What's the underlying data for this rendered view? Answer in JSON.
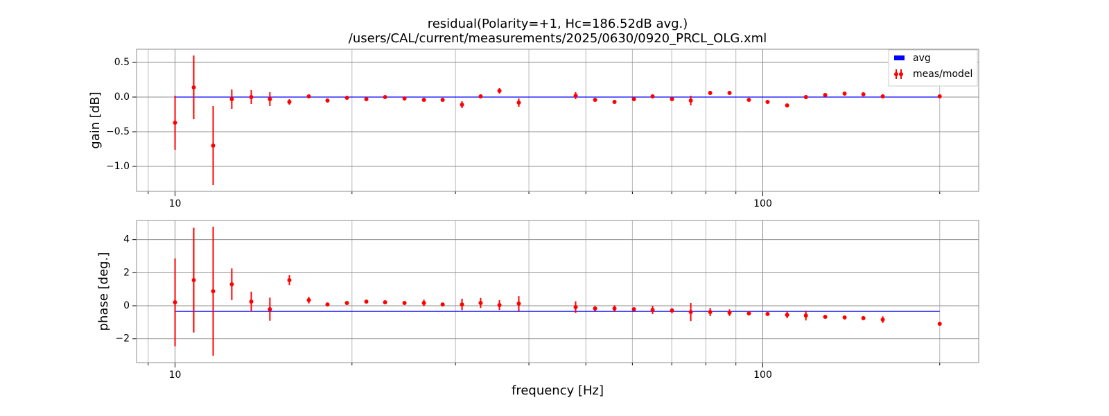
{
  "chart_data": [
    {
      "type": "errorbar",
      "title": "residual(Polarity=+1,  Hc=186.52dB avg.)",
      "subtitle": "/users/CAL/current/measurements/2025/0630/0920_PRCL_OLG.xml",
      "ylabel": "gain [dB]",
      "xscale": "log",
      "grid": true,
      "legend": "upper right",
      "xlim": [
        8.6,
        233
      ],
      "ylim": [
        -1.36,
        0.69
      ],
      "xticks": [
        10,
        100
      ],
      "xminor": [
        9,
        20,
        30,
        40,
        50,
        60,
        70,
        80,
        90,
        200
      ],
      "yticks": [
        {
          "value": 0.5,
          "label": "0.5"
        },
        {
          "value": 0,
          "label": "0.0"
        },
        {
          "value": -0.5,
          "label": "−0.5"
        },
        {
          "value": -1,
          "label": "−1.0"
        }
      ],
      "x": [
        10,
        10.76,
        11.61,
        12.49,
        13.48,
        14.5,
        15.65,
        16.89,
        18.17,
        19.61,
        21.16,
        22.77,
        24.57,
        26.51,
        28.53,
        30.78,
        33.11,
        35.64,
        38.45,
        48.04,
        51.84,
        55.94,
        60.36,
        64.94,
        70.07,
        75.42,
        81.38,
        87.79,
        94.71,
        101.9,
        110,
        118.4,
        127.7,
        137.8,
        148.3,
        160,
        200
      ],
      "series": [
        {
          "name": "avg",
          "style": "line",
          "color": "#0000ff",
          "x": [
            10,
            200
          ],
          "values": [
            0,
            0
          ]
        },
        {
          "name": "meas/model",
          "style": "errorbar",
          "color": "#ff0000",
          "values": [
            -0.37,
            0.14,
            -0.7,
            -0.03,
            0,
            -0.03,
            -0.07,
            0.01,
            -0.05,
            -0.01,
            -0.03,
            0,
            -0.02,
            -0.04,
            -0.04,
            -0.11,
            0.01,
            0.09,
            -0.08,
            0.02,
            -0.04,
            -0.07,
            -0.03,
            0.01,
            -0.03,
            -0.05,
            0.06,
            0.06,
            -0.04,
            -0.07,
            -0.12,
            0,
            0.03,
            0.05,
            0.04,
            0.01,
            0.01
          ],
          "errors": [
            0.39,
            0.46,
            0.57,
            0.14,
            0.1,
            0.1,
            0.04,
            0.02,
            0.01,
            0.01,
            0.01,
            0.01,
            0.01,
            0.02,
            0.01,
            0.05,
            0.03,
            0.04,
            0.06,
            0.05,
            0.02,
            0.02,
            0.02,
            0.03,
            0.02,
            0.07,
            0.03,
            0.02,
            0.02,
            0.01,
            0.02,
            0.03,
            0.01,
            0.01,
            0.01,
            0.03,
            0.01
          ]
        }
      ]
    },
    {
      "type": "errorbar",
      "ylabel": "phase [deg.]",
      "xlabel": "frequency [Hz]",
      "xscale": "log",
      "grid": true,
      "xlim": [
        8.6,
        233
      ],
      "ylim": [
        -3.44,
        5.16
      ],
      "xticks": [
        10,
        100
      ],
      "xminor": [
        9,
        20,
        30,
        40,
        50,
        60,
        70,
        80,
        90,
        200
      ],
      "yticks": [
        4,
        2,
        0,
        {
          "value": -2,
          "label": "−2"
        }
      ],
      "x": [
        10,
        10.76,
        11.61,
        12.49,
        13.48,
        14.5,
        15.65,
        16.89,
        18.17,
        19.61,
        21.16,
        22.77,
        24.57,
        26.51,
        28.53,
        30.78,
        33.11,
        35.64,
        38.45,
        48.04,
        51.84,
        55.94,
        60.36,
        64.94,
        70.07,
        75.42,
        81.38,
        87.79,
        94.71,
        101.9,
        110,
        118.4,
        127.7,
        137.8,
        148.3,
        160,
        200
      ],
      "series": [
        {
          "style": "line",
          "color": "#0000ff",
          "x": [
            10,
            200
          ],
          "values": [
            -0.34,
            -0.34
          ]
        },
        {
          "style": "errorbar",
          "color": "#ff0000",
          "values": [
            0.21,
            1.55,
            0.88,
            1.3,
            0.25,
            -0.21,
            1.55,
            0.34,
            0.08,
            0.17,
            0.25,
            0.21,
            0.17,
            0.17,
            0.08,
            0.08,
            0.17,
            0.04,
            0.13,
            -0.08,
            -0.17,
            -0.17,
            -0.21,
            -0.25,
            -0.29,
            -0.38,
            -0.38,
            -0.42,
            -0.46,
            -0.5,
            -0.55,
            -0.59,
            -0.67,
            -0.71,
            -0.75,
            -0.84,
            -1.09
          ],
          "errors": [
            2.66,
            3.17,
            3.9,
            0.96,
            0.6,
            0.7,
            0.3,
            0.2,
            0.1,
            0.05,
            0.05,
            0.05,
            0.05,
            0.2,
            0.05,
            0.35,
            0.3,
            0.3,
            0.45,
            0.35,
            0.15,
            0.2,
            0.1,
            0.25,
            0.15,
            0.55,
            0.25,
            0.2,
            0.05,
            0.1,
            0.2,
            0.3,
            0.05,
            0.05,
            0.05,
            0.2,
            0.1
          ]
        }
      ]
    }
  ]
}
